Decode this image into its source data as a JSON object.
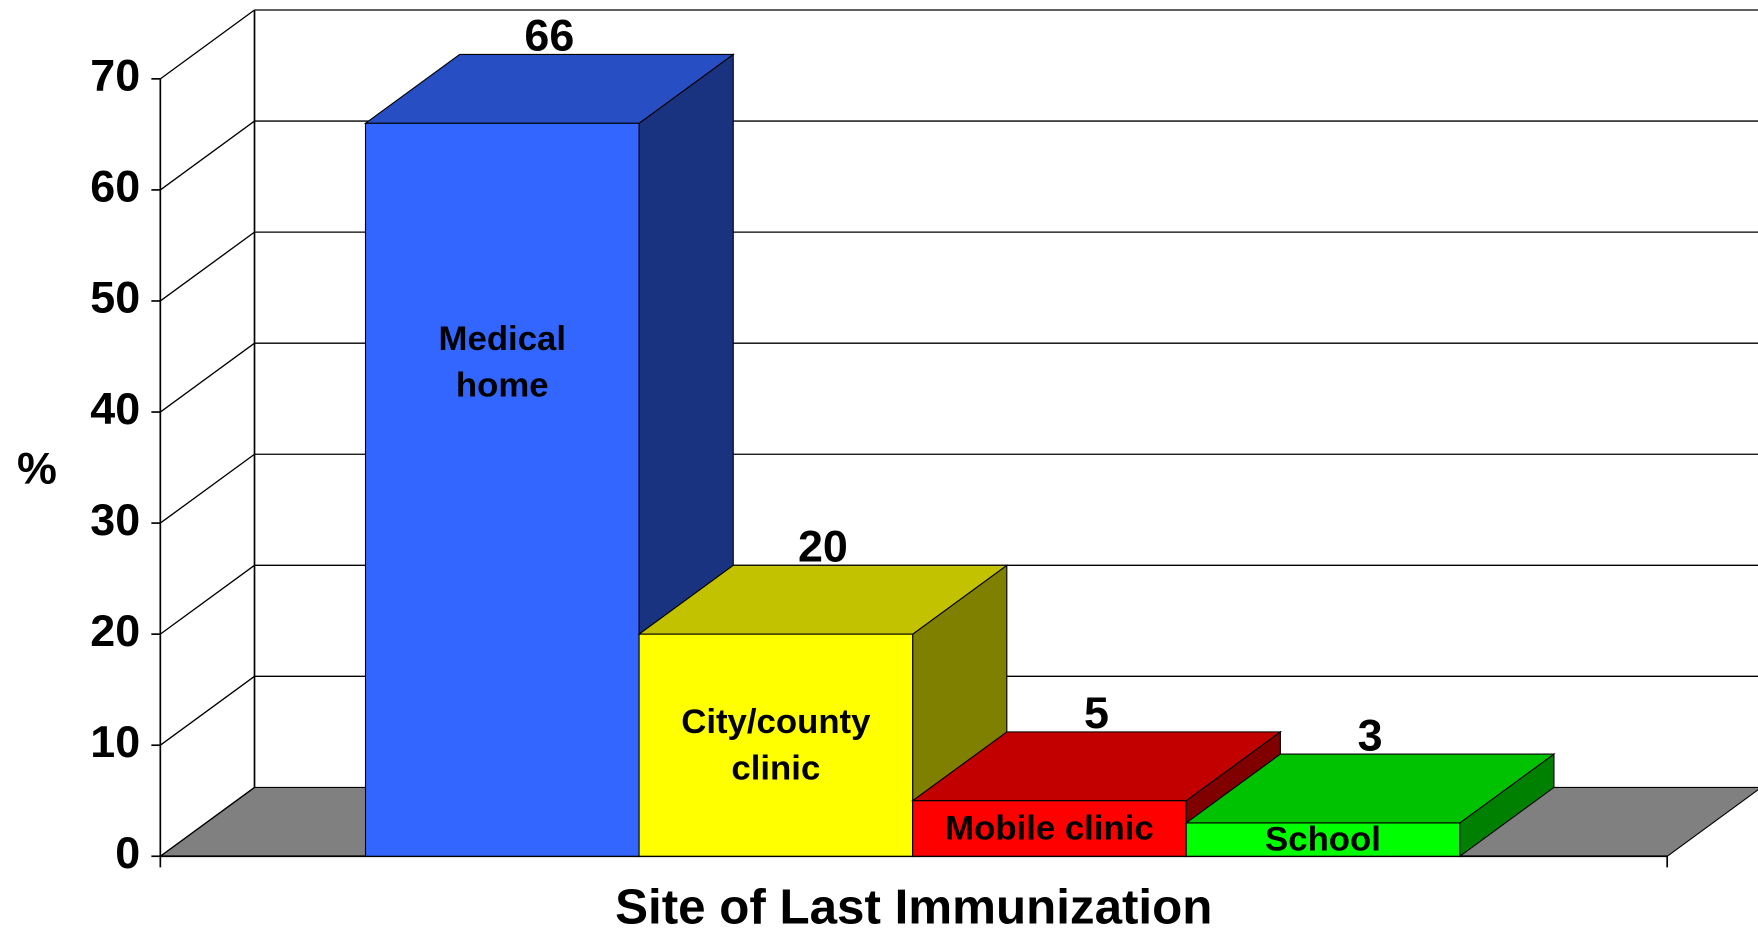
{
  "chart_data": {
    "type": "bar3d",
    "xlabel": "Site of Last Immunization",
    "ylabel": "%",
    "categories": [
      "Medical home",
      "City/county clinic",
      "Mobile clinic",
      "School"
    ],
    "values": [
      66,
      20,
      5,
      3
    ],
    "colors": [
      "#3366ff",
      "#ffff00",
      "#ff0000",
      "#00ff00"
    ],
    "ylim": [
      0,
      70
    ],
    "yticks": [
      0,
      10,
      20,
      30,
      40,
      50,
      60,
      70
    ],
    "grid": true
  }
}
